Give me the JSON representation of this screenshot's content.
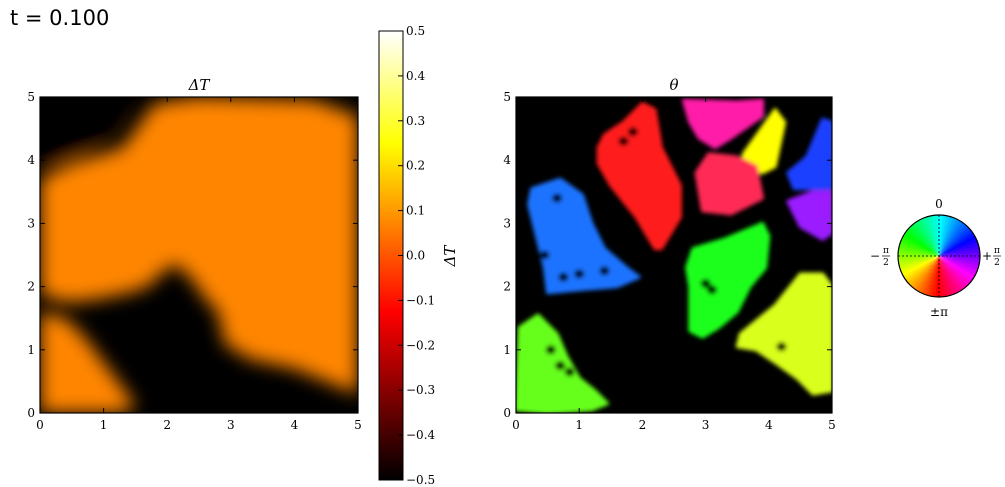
{
  "header": {
    "time_label": "t = 0.100"
  },
  "chart_data": [
    {
      "type": "heatmap",
      "title": "ΔT",
      "xlim": [
        0,
        5
      ],
      "ylim": [
        0,
        5
      ],
      "x_ticks": [
        "0",
        "1",
        "2",
        "3",
        "4",
        "5"
      ],
      "y_ticks": [
        "0",
        "1",
        "2",
        "3",
        "4",
        "5"
      ],
      "colormap": "hot",
      "hot_value": 0.07,
      "cold_value": -0.5,
      "hot_regions": [
        [
          [
            0.0,
            3.7
          ],
          [
            0.5,
            3.95
          ],
          [
            1.3,
            4.2
          ],
          [
            1.8,
            4.9
          ],
          [
            2.5,
            5.0
          ],
          [
            4.3,
            4.95
          ],
          [
            5.0,
            4.7
          ],
          [
            5.0,
            0.3
          ],
          [
            4.5,
            0.5
          ],
          [
            4.0,
            0.7
          ],
          [
            3.3,
            0.85
          ],
          [
            2.9,
            1.1
          ],
          [
            2.8,
            1.6
          ],
          [
            2.6,
            1.8
          ],
          [
            2.4,
            2.1
          ],
          [
            2.2,
            2.3
          ],
          [
            2.1,
            2.35
          ],
          [
            1.9,
            2.2
          ],
          [
            1.7,
            2.0
          ],
          [
            1.4,
            1.9
          ],
          [
            0.9,
            1.8
          ],
          [
            0.5,
            1.75
          ],
          [
            0.2,
            1.8
          ],
          [
            0.0,
            1.9
          ]
        ],
        [
          [
            0.0,
            1.6
          ],
          [
            0.4,
            1.5
          ],
          [
            0.7,
            1.2
          ],
          [
            1.0,
            0.8
          ],
          [
            1.3,
            0.4
          ],
          [
            1.5,
            0.1
          ],
          [
            1.3,
            0.0
          ],
          [
            0.0,
            0.0
          ]
        ]
      ],
      "cold_corners": [
        [
          [
            0.0,
            5.0
          ],
          [
            1.3,
            5.0
          ],
          [
            1.1,
            4.5
          ],
          [
            0.6,
            4.1
          ],
          [
            0.0,
            3.9
          ]
        ]
      ]
    },
    {
      "type": "colorbar",
      "label": "ΔT",
      "range": [
        -0.5,
        0.5
      ],
      "ticks": [
        "0.5",
        "0.4",
        "0.3",
        "0.2",
        "0.1",
        "0.0",
        "−0.1",
        "−0.2",
        "−0.3",
        "−0.4",
        "−0.5"
      ],
      "tick_values": [
        0.5,
        0.4,
        0.3,
        0.2,
        0.1,
        0.0,
        -0.1,
        -0.2,
        -0.3,
        -0.4,
        -0.5
      ]
    },
    {
      "type": "heatmap",
      "title": "θ",
      "xlim": [
        0,
        5
      ],
      "ylim": [
        0,
        5
      ],
      "x_ticks": [
        "0",
        "1",
        "2",
        "3",
        "4",
        "5"
      ],
      "y_ticks": [
        "0",
        "1",
        "2",
        "3",
        "4",
        "5"
      ],
      "background": "#000000",
      "grains": [
        {
          "color": "#1a73ff",
          "points": [
            [
              0.25,
              3.55
            ],
            [
              0.7,
              3.7
            ],
            [
              1.05,
              3.45
            ],
            [
              1.2,
              3.0
            ],
            [
              1.4,
              2.6
            ],
            [
              1.75,
              2.3
            ],
            [
              1.95,
              2.15
            ],
            [
              1.6,
              2.0
            ],
            [
              1.0,
              1.95
            ],
            [
              0.5,
              1.9
            ],
            [
              0.45,
              2.3
            ],
            [
              0.3,
              2.9
            ],
            [
              0.2,
              3.3
            ]
          ],
          "holes": [
            [
              0.65,
              3.4
            ],
            [
              0.45,
              2.5
            ],
            [
              1.0,
              2.2
            ],
            [
              0.75,
              2.15
            ],
            [
              1.4,
              2.25
            ]
          ]
        },
        {
          "color": "#ff1a1a",
          "points": [
            [
              1.4,
              4.4
            ],
            [
              1.7,
              4.6
            ],
            [
              2.0,
              4.9
            ],
            [
              2.2,
              4.8
            ],
            [
              2.3,
              4.2
            ],
            [
              2.6,
              3.6
            ],
            [
              2.6,
              3.1
            ],
            [
              2.3,
              2.6
            ],
            [
              2.2,
              2.6
            ],
            [
              1.9,
              3.1
            ],
            [
              1.5,
              3.6
            ],
            [
              1.3,
              3.95
            ],
            [
              1.3,
              4.2
            ]
          ],
          "holes": [
            [
              1.85,
              4.45
            ],
            [
              1.7,
              4.3
            ]
          ]
        },
        {
          "color": "#ff1aa8",
          "points": [
            [
              2.65,
              4.95
            ],
            [
              3.5,
              4.92
            ],
            [
              3.9,
              4.95
            ],
            [
              3.9,
              4.7
            ],
            [
              3.4,
              4.35
            ],
            [
              3.15,
              4.2
            ],
            [
              2.9,
              4.35
            ],
            [
              2.75,
              4.6
            ]
          ],
          "holes": []
        },
        {
          "color": "#ffff00",
          "points": [
            [
              3.6,
              4.1
            ],
            [
              4.1,
              4.8
            ],
            [
              4.25,
              4.6
            ],
            [
              4.1,
              3.9
            ],
            [
              3.9,
              3.8
            ],
            [
              3.6,
              3.9
            ]
          ],
          "holes": []
        },
        {
          "color": "#1a40ff",
          "points": [
            [
              4.3,
              3.8
            ],
            [
              4.6,
              4.05
            ],
            [
              4.85,
              4.65
            ],
            [
              5.0,
              4.6
            ],
            [
              5.0,
              3.55
            ],
            [
              4.4,
              3.55
            ]
          ],
          "holes": []
        },
        {
          "color": "#ff2a55",
          "points": [
            [
              2.85,
              3.8
            ],
            [
              3.05,
              4.1
            ],
            [
              3.5,
              4.05
            ],
            [
              3.8,
              3.9
            ],
            [
              3.9,
              3.4
            ],
            [
              3.4,
              3.15
            ],
            [
              2.95,
              3.2
            ]
          ],
          "holes": []
        },
        {
          "color": "#9a1aff",
          "points": [
            [
              4.3,
              3.35
            ],
            [
              4.7,
              3.5
            ],
            [
              5.0,
              3.5
            ],
            [
              5.0,
              2.85
            ],
            [
              4.85,
              2.75
            ],
            [
              4.5,
              2.95
            ]
          ],
          "holes": []
        },
        {
          "color": "#1aff1a",
          "points": [
            [
              2.8,
              2.6
            ],
            [
              3.3,
              2.75
            ],
            [
              3.9,
              3.0
            ],
            [
              4.0,
              2.8
            ],
            [
              3.95,
              2.3
            ],
            [
              3.7,
              2.0
            ],
            [
              3.5,
              1.6
            ],
            [
              3.2,
              1.35
            ],
            [
              2.95,
              1.2
            ],
            [
              2.75,
              1.3
            ],
            [
              2.75,
              2.0
            ],
            [
              2.7,
              2.3
            ]
          ],
          "holes": [
            [
              3.1,
              1.95
            ],
            [
              3.0,
              2.05
            ]
          ]
        },
        {
          "color": "#d9ff1a",
          "points": [
            [
              3.55,
              1.25
            ],
            [
              4.1,
              1.7
            ],
            [
              4.5,
              2.2
            ],
            [
              4.85,
              2.2
            ],
            [
              5.0,
              2.0
            ],
            [
              5.0,
              0.35
            ],
            [
              4.7,
              0.3
            ],
            [
              4.45,
              0.55
            ],
            [
              4.1,
              0.8
            ],
            [
              3.8,
              1.0
            ],
            [
              3.5,
              1.05
            ]
          ],
          "holes": [
            [
              4.2,
              1.05
            ]
          ]
        },
        {
          "color": "#66ff1a",
          "points": [
            [
              0.05,
              1.35
            ],
            [
              0.35,
              1.55
            ],
            [
              0.65,
              1.25
            ],
            [
              0.8,
              0.9
            ],
            [
              1.0,
              0.55
            ],
            [
              1.25,
              0.35
            ],
            [
              1.45,
              0.15
            ],
            [
              1.2,
              0.05
            ],
            [
              0.5,
              0.0
            ],
            [
              0.0,
              0.05
            ]
          ],
          "holes": [
            [
              0.55,
              1.0
            ],
            [
              0.7,
              0.75
            ],
            [
              0.85,
              0.65
            ]
          ]
        }
      ]
    },
    {
      "type": "pie",
      "description_labels": {
        "top": "0",
        "bottom": "±π",
        "left_sign": "−",
        "right_sign": "+",
        "numerator": "π",
        "denominator": "2"
      },
      "hue_wheel": true
    }
  ]
}
